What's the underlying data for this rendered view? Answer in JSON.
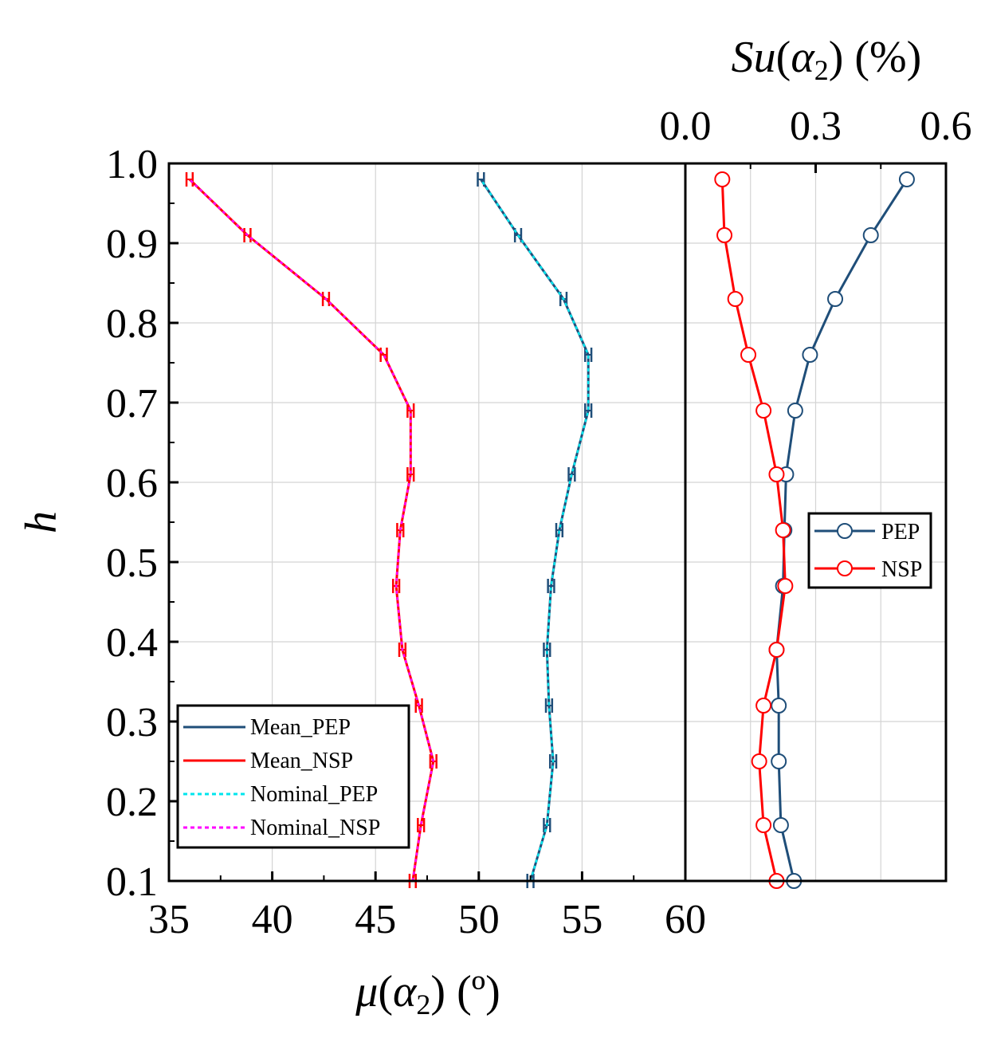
{
  "chart_data": [
    {
      "type": "line",
      "orientation": "vertical-profile",
      "xlabel": "μ(α2) (º)",
      "ylabel": "h",
      "xlim": [
        35,
        60
      ],
      "ylim": [
        0.1,
        1.0
      ],
      "x_ticks": [
        "35",
        "40",
        "45",
        "50",
        "55",
        "60"
      ],
      "y_ticks": [
        "0.1",
        "0.2",
        "0.3",
        "0.4",
        "0.5",
        "0.6",
        "0.7",
        "0.8",
        "0.9",
        "1.0"
      ],
      "grid": true,
      "legend_position": "bottom-left",
      "h": [
        0.1,
        0.17,
        0.25,
        0.32,
        0.39,
        0.47,
        0.54,
        0.61,
        0.69,
        0.76,
        0.83,
        0.91,
        0.98
      ],
      "series": [
        {
          "name": "Mean_PEP",
          "color": "#1f4e79",
          "style": "solid",
          "values": [
            52.5,
            53.3,
            53.6,
            53.4,
            53.3,
            53.5,
            53.9,
            54.5,
            55.3,
            55.3,
            54.1,
            51.9,
            50.1
          ]
        },
        {
          "name": "Mean_NSP",
          "color": "#ff0000",
          "style": "solid",
          "values": [
            46.8,
            47.2,
            47.8,
            47.1,
            46.3,
            46.0,
            46.2,
            46.7,
            46.7,
            45.4,
            42.6,
            38.8,
            36.0
          ]
        },
        {
          "name": "Nominal_PEP",
          "color": "#00e5ee",
          "style": "dotted",
          "values": [
            52.5,
            53.3,
            53.6,
            53.4,
            53.3,
            53.5,
            53.9,
            54.5,
            55.3,
            55.3,
            54.1,
            51.9,
            50.1
          ]
        },
        {
          "name": "Nominal_NSP",
          "color": "#ff00ff",
          "style": "dotted",
          "values": [
            46.8,
            47.2,
            47.8,
            47.1,
            46.3,
            46.0,
            46.2,
            46.7,
            46.7,
            45.4,
            42.6,
            38.8,
            36.0
          ]
        }
      ],
      "error_bar_halfwidth": 0.15
    },
    {
      "type": "line",
      "orientation": "vertical-profile",
      "xlabel": "Su(α2) (%)",
      "xlim": [
        0.0,
        0.6
      ],
      "ylim": [
        0.1,
        1.0
      ],
      "x_ticks": [
        "0.0",
        "0.3",
        "0.6"
      ],
      "grid": true,
      "legend_position": "center-right",
      "h": [
        0.1,
        0.17,
        0.25,
        0.32,
        0.39,
        0.47,
        0.54,
        0.61,
        0.69,
        0.76,
        0.83,
        0.91,
        0.98
      ],
      "series": [
        {
          "name": "PEP",
          "color": "#1f4e79",
          "marker": "open-circle",
          "values": [
            0.25,
            0.22,
            0.215,
            0.215,
            0.21,
            0.225,
            0.228,
            0.232,
            0.253,
            0.287,
            0.345,
            0.427,
            0.51
          ]
        },
        {
          "name": "NSP",
          "color": "#ff0000",
          "marker": "open-circle",
          "values": [
            0.21,
            0.18,
            0.17,
            0.18,
            0.21,
            0.23,
            0.225,
            0.21,
            0.18,
            0.145,
            0.115,
            0.09,
            0.085
          ]
        }
      ]
    }
  ],
  "labels": {
    "left_x_title_mu": "μ",
    "left_x_title_alpha": "α",
    "left_x_title_sub": "2",
    "left_x_title_unit": " (º)",
    "right_x_title_su": "Su",
    "right_x_title_alpha": "α",
    "right_x_title_sub": "2",
    "right_x_title_unit": " (%)",
    "y_title": "h"
  }
}
